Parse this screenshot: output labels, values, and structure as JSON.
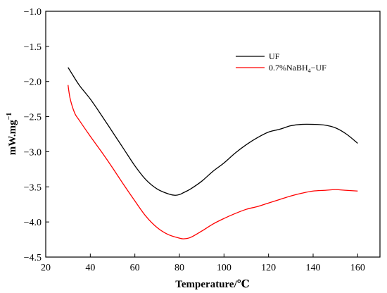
{
  "chart_data": {
    "type": "line",
    "xlabel": "Temperature/℃",
    "ylabel": "mW.mg",
    "ylabel_superscript": "−1",
    "xlim": [
      20,
      170
    ],
    "ylim": [
      -4.5,
      -1.0
    ],
    "x_ticks": [
      20,
      40,
      60,
      80,
      100,
      120,
      140,
      160
    ],
    "x_tick_labels": [
      "20",
      "40",
      "60",
      "80",
      "100",
      "120",
      "140",
      "160"
    ],
    "y_ticks": [
      -1.0,
      -1.5,
      -2.0,
      -2.5,
      -3.0,
      -3.5,
      -4.0,
      -4.5
    ],
    "y_tick_labels": [
      "−1.0",
      "−1.5",
      "−2.0",
      "−2.5",
      "−3.0",
      "−3.5",
      "−4.0",
      "−4.5"
    ],
    "grid": false,
    "legend_position": "top-right",
    "series": [
      {
        "name": "UF",
        "color": "#000000",
        "x": [
          30,
          31,
          35,
          40,
          45,
          50,
          55,
          60,
          65,
          70,
          75,
          78,
          80,
          82,
          85,
          90,
          95,
          100,
          105,
          110,
          115,
          120,
          125,
          130,
          135,
          140,
          145,
          150,
          155,
          160
        ],
        "y": [
          -1.8,
          -1.85,
          -2.05,
          -2.25,
          -2.48,
          -2.72,
          -2.96,
          -3.2,
          -3.4,
          -3.53,
          -3.6,
          -3.62,
          -3.61,
          -3.58,
          -3.53,
          -3.42,
          -3.28,
          -3.16,
          -3.02,
          -2.9,
          -2.8,
          -2.72,
          -2.68,
          -2.63,
          -2.61,
          -2.61,
          -2.62,
          -2.66,
          -2.75,
          -2.88
        ]
      },
      {
        "name": "0.7%NaBH",
        "name_subscript": "4",
        "name_suffix": "−UF",
        "color": "#ff0000",
        "x": [
          30,
          31,
          33,
          35,
          40,
          45,
          50,
          55,
          60,
          65,
          70,
          75,
          80,
          82,
          85,
          90,
          95,
          100,
          105,
          110,
          115,
          120,
          125,
          130,
          135,
          140,
          145,
          150,
          155,
          160
        ],
        "y": [
          -2.05,
          -2.25,
          -2.45,
          -2.55,
          -2.78,
          -3.0,
          -3.23,
          -3.47,
          -3.7,
          -3.92,
          -4.08,
          -4.18,
          -4.23,
          -4.24,
          -4.22,
          -4.13,
          -4.03,
          -3.95,
          -3.88,
          -3.82,
          -3.78,
          -3.73,
          -3.68,
          -3.63,
          -3.59,
          -3.56,
          -3.55,
          -3.54,
          -3.55,
          -3.56
        ]
      }
    ]
  }
}
